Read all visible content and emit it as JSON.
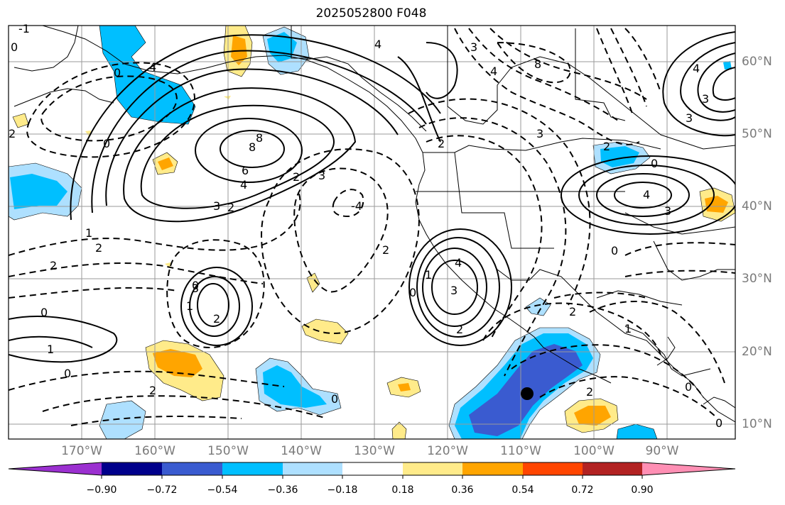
{
  "title": "2025052800 F048",
  "map": {
    "lon_labels": [
      "170°W",
      "160°W",
      "150°W",
      "140°W",
      "130°W",
      "120°W",
      "110°W",
      "100°W",
      "90°W"
    ],
    "lat_labels": [
      "60°N",
      "50°N",
      "40°N",
      "30°N",
      "20°N",
      "10°N"
    ],
    "contour_labels": [
      "-1",
      "0",
      "0",
      "4",
      "4",
      "2",
      "8",
      "8",
      "6",
      "4",
      "3",
      "3",
      "2",
      "2",
      "0",
      "1",
      "1",
      "2",
      "2",
      "0",
      "-4",
      "3",
      "2",
      "3",
      "2",
      "4",
      "4",
      "3",
      "8",
      "3",
      "3",
      "2",
      "0",
      "4",
      "3",
      "0",
      "4",
      "3",
      "1",
      "0",
      "2",
      "2",
      "1",
      "0",
      "2",
      "0",
      "2",
      "1",
      "0",
      "2",
      "0",
      "0"
    ],
    "marker": "black-dot"
  },
  "colorbar": {
    "tick_labels": [
      "−0.90",
      "−0.72",
      "−0.54",
      "−0.36",
      "−0.18",
      "0.18",
      "0.36",
      "0.54",
      "0.72",
      "0.90"
    ],
    "colors": [
      "#9b30d0",
      "#00008b",
      "#3a5bd0",
      "#00bfff",
      "#aee0ff",
      "#ffffff",
      "#ffeb8a",
      "#ffa500",
      "#ff4500",
      "#b22222",
      "#ff8fb4"
    ]
  }
}
